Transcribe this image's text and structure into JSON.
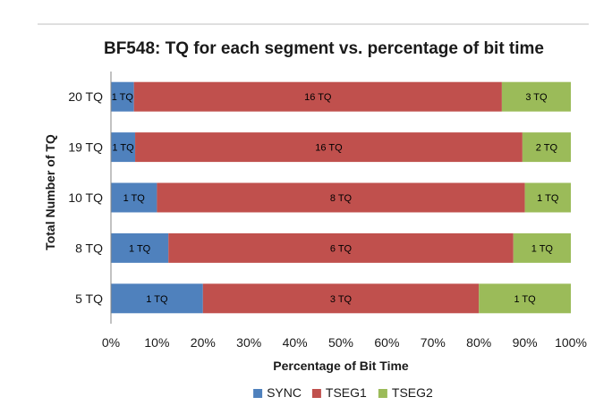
{
  "chart_data": {
    "type": "bar",
    "orientation": "horizontal",
    "stacking": "percent",
    "title": "BF548: TQ for each segment vs. percentage of bit time",
    "xlabel": "Percentage of Bit Time",
    "ylabel": "Total Number of TQ",
    "xlim": [
      0,
      100
    ],
    "x_ticks": [
      "0%",
      "10%",
      "20%",
      "30%",
      "40%",
      "50%",
      "60%",
      "70%",
      "80%",
      "90%",
      "100%"
    ],
    "categories": [
      "20 TQ",
      "19 TQ",
      "10 TQ",
      "8 TQ",
      "5 TQ"
    ],
    "series": [
      {
        "name": "SYNC",
        "color": "#4f81bd",
        "values": [
          5,
          5.26,
          10,
          12.5,
          20
        ],
        "labels": [
          "1 TQ",
          "1 TQ",
          "1 TQ",
          "1 TQ",
          "1 TQ"
        ]
      },
      {
        "name": "TSEG1",
        "color": "#c0504d",
        "values": [
          80,
          84.21,
          80,
          75,
          60
        ],
        "labels": [
          "16 TQ",
          "16 TQ",
          "8 TQ",
          "6 TQ",
          "3 TQ"
        ]
      },
      {
        "name": "TSEG2",
        "color": "#9bbb59",
        "values": [
          15,
          10.53,
          10,
          12.5,
          20
        ],
        "labels": [
          "3 TQ",
          "2 TQ",
          "1 TQ",
          "1 TQ",
          "1 TQ"
        ]
      }
    ],
    "grid": false,
    "legend": "bottom"
  }
}
